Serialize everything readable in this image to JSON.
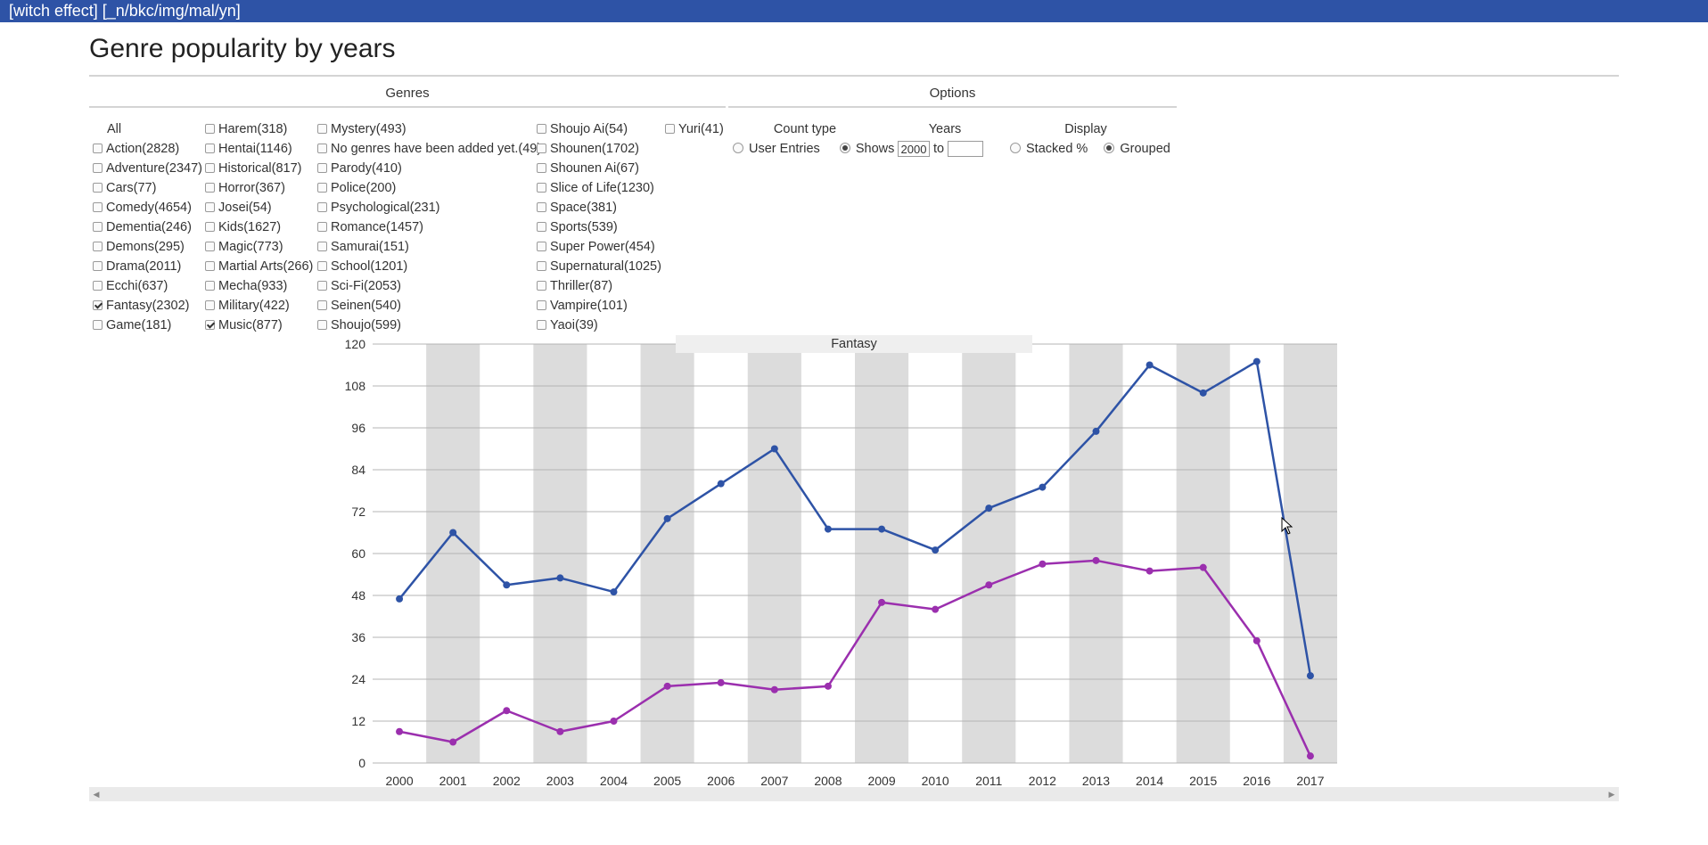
{
  "window_title": "[witch effect] [_n/bkc/img/mal/yn]",
  "page_title": "Genre popularity by years",
  "genres_heading": "Genres",
  "options_heading": "Options",
  "genre_columns": [
    [
      {
        "label": "All",
        "checkbox": false,
        "checked": false
      },
      {
        "label": "Action(2828)",
        "checkbox": true,
        "checked": false
      },
      {
        "label": "Adventure(2347)",
        "checkbox": true,
        "checked": false
      },
      {
        "label": "Cars(77)",
        "checkbox": true,
        "checked": false
      },
      {
        "label": "Comedy(4654)",
        "checkbox": true,
        "checked": false
      },
      {
        "label": "Dementia(246)",
        "checkbox": true,
        "checked": false
      },
      {
        "label": "Demons(295)",
        "checkbox": true,
        "checked": false
      },
      {
        "label": "Drama(2011)",
        "checkbox": true,
        "checked": false
      },
      {
        "label": "Ecchi(637)",
        "checkbox": true,
        "checked": false
      },
      {
        "label": "Fantasy(2302)",
        "checkbox": true,
        "checked": true
      },
      {
        "label": "Game(181)",
        "checkbox": true,
        "checked": false
      }
    ],
    [
      {
        "label": "Harem(318)",
        "checkbox": true,
        "checked": false
      },
      {
        "label": "Hentai(1146)",
        "checkbox": true,
        "checked": false
      },
      {
        "label": "Historical(817)",
        "checkbox": true,
        "checked": false
      },
      {
        "label": "Horror(367)",
        "checkbox": true,
        "checked": false
      },
      {
        "label": "Josei(54)",
        "checkbox": true,
        "checked": false
      },
      {
        "label": "Kids(1627)",
        "checkbox": true,
        "checked": false
      },
      {
        "label": "Magic(773)",
        "checkbox": true,
        "checked": false
      },
      {
        "label": "Martial Arts(266)",
        "checkbox": true,
        "checked": false
      },
      {
        "label": "Mecha(933)",
        "checkbox": true,
        "checked": false
      },
      {
        "label": "Military(422)",
        "checkbox": true,
        "checked": false
      },
      {
        "label": "Music(877)",
        "checkbox": true,
        "checked": true
      }
    ],
    [
      {
        "label": "Mystery(493)",
        "checkbox": true,
        "checked": false
      },
      {
        "label": "No genres have been added yet.(49)",
        "checkbox": true,
        "checked": false
      },
      {
        "label": "Parody(410)",
        "checkbox": true,
        "checked": false
      },
      {
        "label": "Police(200)",
        "checkbox": true,
        "checked": false
      },
      {
        "label": "Psychological(231)",
        "checkbox": true,
        "checked": false
      },
      {
        "label": "Romance(1457)",
        "checkbox": true,
        "checked": false
      },
      {
        "label": "Samurai(151)",
        "checkbox": true,
        "checked": false
      },
      {
        "label": "School(1201)",
        "checkbox": true,
        "checked": false
      },
      {
        "label": "Sci-Fi(2053)",
        "checkbox": true,
        "checked": false
      },
      {
        "label": "Seinen(540)",
        "checkbox": true,
        "checked": false
      },
      {
        "label": "Shoujo(599)",
        "checkbox": true,
        "checked": false
      }
    ],
    [
      {
        "label": "Shoujo Ai(54)",
        "checkbox": true,
        "checked": false
      },
      {
        "label": "Shounen(1702)",
        "checkbox": true,
        "checked": false
      },
      {
        "label": "Shounen Ai(67)",
        "checkbox": true,
        "checked": false
      },
      {
        "label": "Slice of Life(1230)",
        "checkbox": true,
        "checked": false
      },
      {
        "label": "Space(381)",
        "checkbox": true,
        "checked": false
      },
      {
        "label": "Sports(539)",
        "checkbox": true,
        "checked": false
      },
      {
        "label": "Super Power(454)",
        "checkbox": true,
        "checked": false
      },
      {
        "label": "Supernatural(1025)",
        "checkbox": true,
        "checked": false
      },
      {
        "label": "Thriller(87)",
        "checkbox": true,
        "checked": false
      },
      {
        "label": "Vampire(101)",
        "checkbox": true,
        "checked": false
      },
      {
        "label": "Yaoi(39)",
        "checkbox": true,
        "checked": false
      }
    ],
    [
      {
        "label": "Yuri(41)",
        "checkbox": true,
        "checked": false
      }
    ]
  ],
  "options": {
    "count_type": {
      "label": "Count type",
      "choices": [
        {
          "label": "User Entries",
          "selected": false
        },
        {
          "label": "Shows",
          "selected": true
        }
      ]
    },
    "years": {
      "label": "Years",
      "from": "2000",
      "to_label": "to",
      "to": ""
    },
    "display": {
      "label": "Display",
      "choices": [
        {
          "label": "Stacked %",
          "selected": false
        },
        {
          "label": "Grouped",
          "selected": true
        }
      ]
    }
  },
  "chart_data": {
    "type": "line",
    "title": "Fantasy",
    "xlabel": "",
    "ylabel": "",
    "x": [
      2000,
      2001,
      2002,
      2003,
      2004,
      2005,
      2006,
      2007,
      2008,
      2009,
      2010,
      2011,
      2012,
      2013,
      2014,
      2015,
      2016,
      2017
    ],
    "ylim": [
      0,
      120
    ],
    "yticks": [
      0,
      12,
      24,
      36,
      48,
      60,
      72,
      84,
      96,
      108,
      120
    ],
    "grid": true,
    "alternating_column_bands": true,
    "series": [
      {
        "color": "#2e53a6",
        "values": [
          47,
          66,
          51,
          53,
          49,
          70,
          80,
          90,
          67,
          67,
          61,
          73,
          79,
          95,
          114,
          106,
          115,
          25
        ]
      },
      {
        "color": "#9b2fae",
        "values": [
          9,
          6,
          15,
          9,
          12,
          22,
          23,
          21,
          22,
          46,
          44,
          51,
          57,
          58,
          55,
          56,
          35,
          2
        ]
      }
    ],
    "band_color": "#dcdcdc",
    "grid_color": "#b5b5b5"
  }
}
